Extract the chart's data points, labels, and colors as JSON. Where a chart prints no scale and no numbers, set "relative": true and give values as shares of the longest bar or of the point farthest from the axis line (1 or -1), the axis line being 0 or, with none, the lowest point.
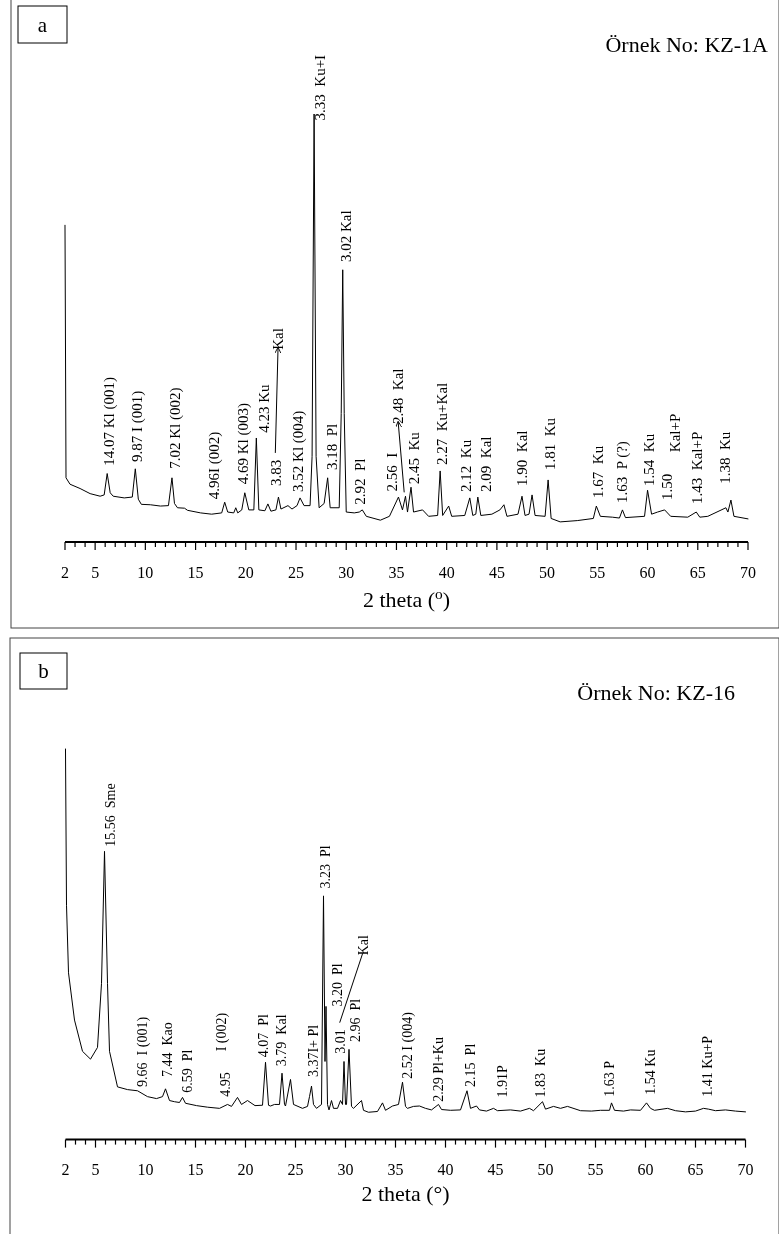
{
  "chart_data": [
    {
      "type": "line",
      "title": "Örnek No: KZ-1A",
      "xlabel": "2 theta ($^{o}$)",
      "relative": true,
      "color": "#000000",
      "xlim": [
        2,
        70
      ],
      "xticks": [
        2,
        {
          "value": 3,
          "label": null
        },
        {
          "value": 4,
          "label": null
        },
        5,
        {
          "value": 6,
          "label": null
        },
        {
          "value": 7,
          "label": null
        },
        {
          "value": 8,
          "label": null
        },
        {
          "value": 9,
          "label": null
        },
        10,
        {
          "value": 11,
          "label": null
        },
        {
          "value": 12,
          "label": null
        },
        {
          "value": 13,
          "label": null
        },
        {
          "value": 14,
          "label": null
        },
        15,
        {
          "value": 16,
          "label": null
        },
        {
          "value": 17,
          "label": null
        },
        {
          "value": 18,
          "label": null
        },
        {
          "value": 19,
          "label": null
        },
        20,
        {
          "value": 21,
          "label": null
        },
        {
          "value": 22,
          "label": null
        },
        {
          "value": 23,
          "label": null
        },
        {
          "value": 24,
          "label": null
        },
        25,
        {
          "value": 26,
          "label": null
        },
        {
          "value": 27,
          "label": null
        },
        {
          "value": 28,
          "label": null
        },
        {
          "value": 29,
          "label": null
        },
        30,
        {
          "value": 31,
          "label": null
        },
        {
          "value": 32,
          "label": null
        },
        {
          "value": 33,
          "label": null
        },
        {
          "value": 34,
          "label": null
        },
        35,
        {
          "value": 36,
          "label": null
        },
        {
          "value": 37,
          "label": null
        },
        {
          "value": 38,
          "label": null
        },
        {
          "value": 39,
          "label": null
        },
        40,
        {
          "value": 41,
          "label": null
        },
        {
          "value": 42,
          "label": null
        },
        {
          "value": 43,
          "label": null
        },
        {
          "value": 44,
          "label": null
        },
        45,
        {
          "value": 46,
          "label": null
        },
        {
          "value": 47,
          "label": null
        },
        {
          "value": 48,
          "label": null
        },
        {
          "value": 49,
          "label": null
        },
        50,
        {
          "value": 51,
          "label": null
        },
        {
          "value": 52,
          "label": null
        },
        {
          "value": 53,
          "label": null
        },
        {
          "value": 54,
          "label": null
        },
        55,
        {
          "value": 56,
          "label": null
        },
        {
          "value": 57,
          "label": null
        },
        {
          "value": 58,
          "label": null
        },
        {
          "value": 59,
          "label": null
        },
        60,
        {
          "value": 61,
          "label": null
        },
        {
          "value": 62,
          "label": null
        },
        {
          "value": 63,
          "label": null
        },
        {
          "value": 64,
          "label": null
        },
        65,
        {
          "value": 66,
          "label": null
        },
        {
          "value": 67,
          "label": null
        },
        {
          "value": 68,
          "label": null
        },
        {
          "value": 69,
          "label": null
        },
        70
      ],
      "x": [
        2.0,
        2.1,
        2.5,
        3.5,
        4.5,
        5.5,
        5.9,
        6.2,
        6.5,
        6.8,
        7.9,
        8.7,
        9.0,
        9.3,
        9.6,
        10.5,
        11.5,
        12.3,
        12.65,
        12.9,
        13.2,
        13.9,
        14.2,
        15.5,
        16.6,
        17.6,
        17.9,
        18.2,
        18.8,
        19.0,
        19.2,
        19.6,
        19.9,
        20.3,
        20.8,
        21.05,
        21.3,
        21.9,
        22.2,
        22.5,
        23.0,
        23.25,
        23.5,
        24.2,
        24.6,
        25.1,
        25.4,
        25.8,
        26.4,
        26.6,
        26.8,
        27.0,
        27.3,
        27.8,
        28.15,
        28.4,
        29.3,
        29.5,
        29.65,
        29.8,
        30.0,
        30.8,
        31.3,
        31.6,
        32.0,
        33.4,
        34.3,
        35.2,
        35.6,
        35.9,
        36.1,
        36.45,
        36.7,
        37.6,
        38.2,
        39.1,
        39.35,
        39.6,
        40.2,
        40.5,
        41.8,
        42.3,
        42.6,
        42.9,
        43.1,
        43.4,
        44.5,
        45.3,
        45.7,
        46.0,
        47.1,
        47.5,
        47.8,
        48.2,
        48.5,
        48.8,
        49.8,
        50.1,
        50.4,
        51.3,
        53.0,
        54.6,
        54.9,
        55.3,
        56.5,
        57.2,
        57.5,
        57.8,
        59.7,
        60.0,
        60.4,
        61.0,
        61.7,
        62.3,
        64.0,
        64.85,
        65.2,
        66.0,
        67.8,
        68.0,
        68.3,
        68.6,
        70.0
      ],
      "values": [
        0.74,
        0.15,
        0.135,
        0.125,
        0.113,
        0.107,
        0.11,
        0.16,
        0.115,
        0.107,
        0.103,
        0.105,
        0.171,
        0.1,
        0.088,
        0.087,
        0.084,
        0.085,
        0.15,
        0.09,
        0.08,
        0.079,
        0.074,
        0.068,
        0.065,
        0.068,
        0.093,
        0.07,
        0.068,
        0.08,
        0.068,
        0.075,
        0.115,
        0.075,
        0.075,
        0.243,
        0.075,
        0.073,
        0.089,
        0.072,
        0.075,
        0.105,
        0.077,
        0.085,
        0.077,
        0.085,
        0.103,
        0.085,
        0.085,
        0.2,
        1.0,
        0.2,
        0.08,
        0.09,
        0.15,
        0.08,
        0.08,
        0.3,
        0.636,
        0.3,
        0.07,
        0.068,
        0.07,
        0.075,
        0.06,
        0.051,
        0.06,
        0.105,
        0.075,
        0.107,
        0.07,
        0.128,
        0.07,
        0.075,
        0.06,
        0.062,
        0.166,
        0.062,
        0.084,
        0.06,
        0.062,
        0.103,
        0.062,
        0.065,
        0.105,
        0.062,
        0.065,
        0.075,
        0.087,
        0.06,
        0.065,
        0.107,
        0.062,
        0.065,
        0.11,
        0.062,
        0.06,
        0.145,
        0.055,
        0.047,
        0.05,
        0.055,
        0.084,
        0.06,
        0.058,
        0.056,
        0.075,
        0.057,
        0.06,
        0.121,
        0.065,
        0.07,
        0.075,
        0.06,
        0.058,
        0.07,
        0.058,
        0.06,
        0.08,
        0.07,
        0.098,
        0.06,
        0.054
      ],
      "annotations": [
        "a",
        "14.07 Kl (001)",
        "9.87 I (001)",
        "7.02 Kl (002)",
        "4.96I (002)",
        "4.69 Kl (003)",
        "4.23 Ku",
        "3.83",
        "Kal",
        "3.52 Kl (004)",
        "3.33  Ku+I",
        "3.18  Pl",
        "3.02 Kal",
        "2.92  Pl",
        "2.56  I",
        "2.48  Kal",
        "2.45  Ku",
        "2.27  Ku+Kal",
        "2.12  Ku",
        "2.09  Kal",
        "1.90  Kal",
        "1.81  Ku",
        "1.67  Ku",
        "1.63  P (?)",
        "1.54  Ku",
        "1.50",
        "Kal+P",
        "1.43  Kal+P",
        "1.38  Ku"
      ]
    },
    {
      "type": "line",
      "title": "Örnek No: KZ-16",
      "xlabel": "2 theta (°)",
      "relative": true,
      "color": "#000000",
      "xlim": [
        2,
        70
      ],
      "xticks": [
        2,
        {
          "value": 3,
          "label": null
        },
        {
          "value": 4,
          "label": null
        },
        5,
        {
          "value": 6,
          "label": null
        },
        {
          "value": 7,
          "label": null
        },
        {
          "value": 8,
          "label": null
        },
        {
          "value": 9,
          "label": null
        },
        10,
        {
          "value": 11,
          "label": null
        },
        {
          "value": 12,
          "label": null
        },
        {
          "value": 13,
          "label": null
        },
        {
          "value": 14,
          "label": null
        },
        15,
        {
          "value": 16,
          "label": null
        },
        {
          "value": 17,
          "label": null
        },
        {
          "value": 18,
          "label": null
        },
        {
          "value": 19,
          "label": null
        },
        20,
        {
          "value": 21,
          "label": null
        },
        {
          "value": 22,
          "label": null
        },
        {
          "value": 23,
          "label": null
        },
        {
          "value": 24,
          "label": null
        },
        25,
        {
          "value": 26,
          "label": null
        },
        {
          "value": 27,
          "label": null
        },
        {
          "value": 28,
          "label": null
        },
        {
          "value": 29,
          "label": null
        },
        30,
        {
          "value": 31,
          "label": null
        },
        {
          "value": 32,
          "label": null
        },
        {
          "value": 33,
          "label": null
        },
        {
          "value": 34,
          "label": null
        },
        35,
        {
          "value": 36,
          "label": null
        },
        {
          "value": 37,
          "label": null
        },
        {
          "value": 38,
          "label": null
        },
        {
          "value": 39,
          "label": null
        },
        40,
        {
          "value": 41,
          "label": null
        },
        {
          "value": 42,
          "label": null
        },
        {
          "value": 43,
          "label": null
        },
        {
          "value": 44,
          "label": null
        },
        45,
        {
          "value": 46,
          "label": null
        },
        {
          "value": 47,
          "label": null
        },
        {
          "value": 48,
          "label": null
        },
        {
          "value": 49,
          "label": null
        },
        50,
        {
          "value": 51,
          "label": null
        },
        {
          "value": 52,
          "label": null
        },
        {
          "value": 53,
          "label": null
        },
        {
          "value": 54,
          "label": null
        },
        55,
        {
          "value": 56,
          "label": null
        },
        {
          "value": 57,
          "label": null
        },
        {
          "value": 58,
          "label": null
        },
        {
          "value": 59,
          "label": null
        },
        60,
        {
          "value": 61,
          "label": null
        },
        {
          "value": 62,
          "label": null
        },
        {
          "value": 63,
          "label": null
        },
        {
          "value": 64,
          "label": null
        },
        65,
        {
          "value": 66,
          "label": null
        },
        {
          "value": 67,
          "label": null
        },
        {
          "value": 68,
          "label": null
        },
        {
          "value": 69,
          "label": null
        },
        70
      ],
      "x": [
        2.0,
        2.1,
        2.3,
        2.9,
        3.7,
        4.5,
        5.2,
        5.6,
        5.9,
        6.2,
        6.4,
        7.2,
        8.2,
        9.2,
        10.2,
        11.1,
        11.7,
        12.0,
        12.4,
        12.9,
        13.4,
        13.7,
        14.0,
        15.1,
        16.2,
        17.4,
        18.2,
        18.6,
        19.2,
        19.6,
        20.2,
        20.95,
        21.7,
        22.0,
        22.3,
        22.5,
        22.9,
        23.4,
        23.65,
        23.9,
        24.0,
        24.5,
        24.8,
        25.7,
        26.2,
        26.4,
        26.6,
        26.8,
        27.1,
        27.6,
        27.8,
        27.95,
        28.05,
        28.2,
        28.35,
        28.6,
        28.8,
        29.2,
        29.5,
        29.7,
        29.85,
        30.0,
        30.1,
        30.35,
        30.6,
        30.8,
        31.6,
        31.8,
        32.3,
        33.2,
        33.7,
        34.0,
        34.7,
        35.3,
        35.7,
        36.0,
        36.2,
        36.8,
        37.4,
        38.0,
        38.6,
        39.3,
        39.6,
        40.5,
        41.5,
        42.15,
        42.5,
        43.1,
        43.4,
        44.1,
        44.8,
        45.2,
        46.5,
        47.5,
        48.4,
        48.8,
        49.7,
        50.0,
        50.8,
        51.5,
        52.2,
        53.5,
        54.6,
        55.5,
        56.4,
        56.6,
        56.9,
        57.8,
        58.5,
        59.5,
        60.1,
        60.5,
        60.9,
        62.2,
        63.0,
        64.0,
        65.0,
        65.8,
        66.3,
        67.0,
        68.0,
        69.0,
        70.0
      ],
      "values": [
        1.0,
        0.6,
        0.427,
        0.306,
        0.226,
        0.206,
        0.236,
        0.4,
        0.738,
        0.4,
        0.226,
        0.135,
        0.128,
        0.125,
        0.11,
        0.105,
        0.11,
        0.13,
        0.1,
        0.097,
        0.095,
        0.108,
        0.093,
        0.087,
        0.083,
        0.08,
        0.09,
        0.085,
        0.108,
        0.09,
        0.1,
        0.087,
        0.088,
        0.198,
        0.088,
        0.086,
        0.09,
        0.09,
        0.17,
        0.09,
        0.086,
        0.154,
        0.09,
        0.08,
        0.085,
        0.11,
        0.137,
        0.09,
        0.08,
        0.09,
        0.624,
        0.2,
        0.341,
        0.09,
        0.076,
        0.1,
        0.08,
        0.08,
        0.1,
        0.09,
        0.2,
        0.09,
        0.09,
        0.231,
        0.085,
        0.08,
        0.1,
        0.075,
        0.07,
        0.072,
        0.094,
        0.075,
        0.086,
        0.09,
        0.147,
        0.085,
        0.08,
        0.085,
        0.086,
        0.08,
        0.076,
        0.09,
        0.077,
        0.075,
        0.076,
        0.125,
        0.08,
        0.086,
        0.076,
        0.073,
        0.08,
        0.074,
        0.076,
        0.073,
        0.08,
        0.074,
        0.097,
        0.078,
        0.085,
        0.08,
        0.085,
        0.074,
        0.073,
        0.075,
        0.075,
        0.094,
        0.075,
        0.073,
        0.076,
        0.075,
        0.094,
        0.08,
        0.075,
        0.08,
        0.074,
        0.071,
        0.073,
        0.08,
        0.078,
        0.074,
        0.076,
        0.073,
        0.071
      ],
      "annotations": [
        "b",
        "15.56  Sme",
        "9.66  I (001)",
        "7.44  Kao",
        "6.59  Pl",
        "4.95",
        "I (002)",
        "4.07  Pl",
        "3.79  Kal",
        "3.37I+ Pl",
        "3.23  Pl",
        "3.20  Pl",
        "3.01",
        "Kal",
        "2.96  Pl",
        "2.52 I (004)",
        "2.29 Pl+Ku",
        "2.15  Pl",
        "1.91P",
        "1.83  Ku",
        "1.63 P",
        "1.54 Ku",
        "1.41 Ku+P"
      ]
    }
  ]
}
